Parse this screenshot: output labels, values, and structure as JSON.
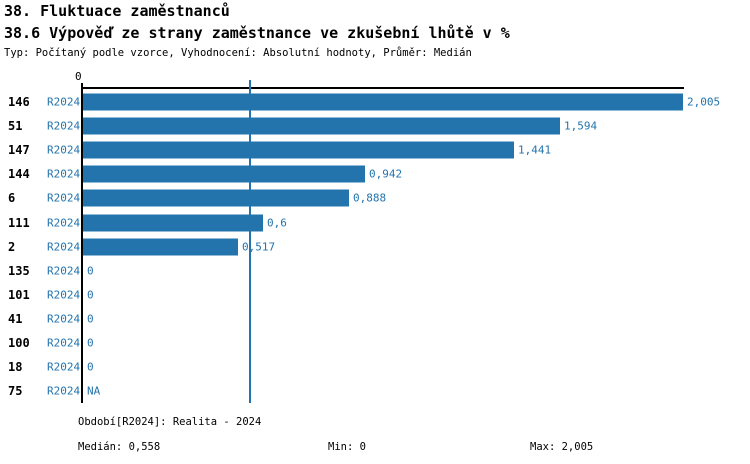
{
  "header": {
    "title": "38. Fluktuace zaměstnanců",
    "subtitle": "38.6 Výpověď ze strany zaměstnance ve zkušební lhůtě v %",
    "meta": "Typ: Počítaný podle vzorce, Vyhodnocení: Absolutní hodnoty, Průměr: Medián"
  },
  "chart_data": {
    "type": "bar",
    "orientation": "horizontal",
    "title": "38.6 Výpověď ze strany zaměstnance ve zkušební lhůtě v %",
    "xlabel": "",
    "ylabel": "",
    "xlim": [
      0,
      2.005
    ],
    "axis_tick_label": "0",
    "grid": false,
    "legend": "none",
    "period_label": "R2024",
    "categories": [
      "146",
      "51",
      "147",
      "144",
      "6",
      "111",
      "2",
      "135",
      "101",
      "41",
      "100",
      "18",
      "75"
    ],
    "values": [
      2.005,
      1.594,
      1.441,
      0.942,
      0.888,
      0.6,
      0.517,
      0,
      0,
      0,
      0,
      0,
      null
    ],
    "value_labels": [
      "2,005",
      "1,594",
      "1,441",
      "0,942",
      "0,888",
      "0,6",
      "0,517",
      "0",
      "0",
      "0",
      "0",
      "0",
      "NA"
    ],
    "median_value": 0.558,
    "bar_color": "#2374ad",
    "median_line_color": "#2374ad",
    "label_color": "#2374ad",
    "axis_color": "#000000"
  },
  "footer": {
    "period_info": "Období[R2024]: Realita - 2024",
    "median_label": "Medián: 0,558",
    "min_label": "Min: 0",
    "max_label": "Max: 2,005"
  }
}
